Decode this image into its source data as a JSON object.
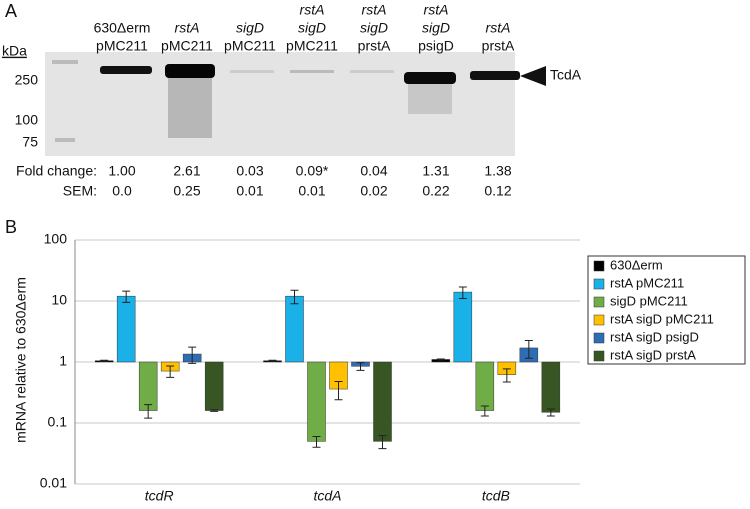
{
  "panel_a": {
    "label": "A",
    "lanes": [
      [
        "630Δerm",
        "pMC211"
      ],
      [
        "rstA",
        "pMC211"
      ],
      [
        "sigD",
        "pMC211"
      ],
      [
        "rstA",
        "sigD",
        "pMC211"
      ],
      [
        "rstA",
        "sigD",
        "prstA"
      ],
      [
        "rstA",
        "sigD",
        "psigD"
      ],
      [
        "rstA",
        "prstA"
      ]
    ],
    "marker_unit": "kDa",
    "markers": [
      "250",
      "100",
      "75"
    ],
    "band_label": "TcdA",
    "fold_change_label": "Fold change:",
    "fold_change": [
      "1.00",
      "2.61",
      "0.03",
      "0.09*",
      "0.04",
      "1.31",
      "1.38"
    ],
    "sem_label": "SEM:",
    "sem": [
      "0.0",
      "0.25",
      "0.01",
      "0.01",
      "0.02",
      "0.22",
      "0.12"
    ]
  },
  "chart_data": {
    "type": "bar",
    "panel_label": "B",
    "y_label": "mRNA relative to 630Δerm",
    "log_y": true,
    "grid": true,
    "legend": "right",
    "categories": [
      "tcdR",
      "tcdA",
      "tcdB"
    ],
    "ylim": [
      0.01,
      100
    ],
    "yticks": [
      0.01,
      0.1,
      1,
      10,
      100
    ],
    "series": [
      {
        "name": "630Δerm",
        "color": "#000000",
        "values": [
          1.05,
          1.05,
          1.1
        ],
        "errors": [
          0.02,
          0.02,
          0.02
        ]
      },
      {
        "name": "rstA pMC211",
        "color": "#1ab0e8",
        "values": [
          12,
          12,
          14
        ],
        "errors": [
          2.5,
          3,
          3
        ]
      },
      {
        "name": "sigD pMC211",
        "color": "#70ad47",
        "values": [
          0.16,
          0.05,
          0.16
        ],
        "errors": [
          0.04,
          0.01,
          0.03
        ]
      },
      {
        "name": "rstA sigD pMC211",
        "color": "#ffc000",
        "values": [
          0.71,
          0.36,
          0.62
        ],
        "errors": [
          0.15,
          0.12,
          0.15
        ]
      },
      {
        "name": "rstA sigD psigD",
        "color": "#2e6db4",
        "values": [
          1.35,
          0.85,
          1.7
        ],
        "errors": [
          0.4,
          0.12,
          0.55
        ]
      },
      {
        "name": "rstA sigD prstA",
        "color": "#375623",
        "values": [
          0.16,
          0.05,
          0.15
        ],
        "errors": [
          0.005,
          0.012,
          0.02
        ]
      }
    ]
  }
}
